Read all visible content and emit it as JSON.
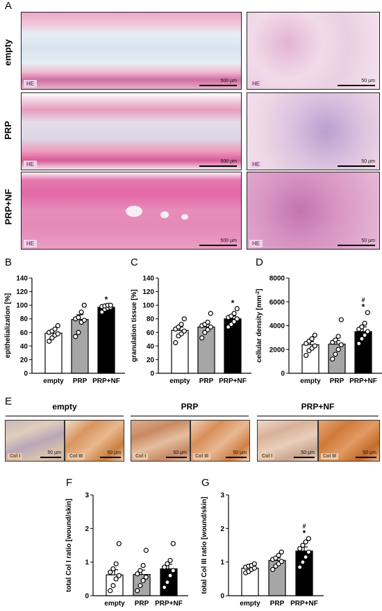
{
  "panel_letters": {
    "A": "A",
    "B": "B",
    "C": "C",
    "D": "D",
    "E": "E",
    "F": "F",
    "G": "G"
  },
  "panel_a": {
    "rows": [
      {
        "label": "empty",
        "stain": "HE",
        "scale_low": "500 µm",
        "scale_high": "50 µm"
      },
      {
        "label": "PRP",
        "stain": "HE",
        "scale_low": "500 µm",
        "scale_high": "50 µm"
      },
      {
        "label": "PRP+NF",
        "stain": "HE",
        "scale_low": "500 µm",
        "scale_high": "50 µm"
      }
    ]
  },
  "panel_e": {
    "groups": [
      {
        "label": "empty",
        "col1": "Col I",
        "col3": "Col III",
        "scale1": "50 µm",
        "scale3": "50 µm"
      },
      {
        "label": "PRP",
        "col1": "Col I",
        "col3": "Col III",
        "scale1": "50 µm",
        "scale3": "50 µm"
      },
      {
        "label": "PRP+NF",
        "col1": "Col I",
        "col3": "Col III",
        "scale1": "50 µm",
        "scale3": "50 µm"
      }
    ]
  },
  "colors": {
    "empty": "#ffffff",
    "PRP": "#a6a6a6",
    "PRP+NF": "#000000"
  },
  "chart_data": [
    {
      "id": "B",
      "type": "bar",
      "categories": [
        "empty",
        "PRP",
        "PRP+NF"
      ],
      "values": [
        59,
        79,
        97
      ],
      "errors": [
        5,
        7,
        2
      ],
      "points": [
        [
          47,
          52,
          56,
          58,
          60,
          62,
          65,
          70
        ],
        [
          54,
          60,
          75,
          78,
          80,
          82,
          90,
          100
        ],
        [
          90,
          94,
          96,
          97,
          98,
          99,
          100,
          100
        ]
      ],
      "sig": [
        "",
        "",
        "*"
      ],
      "ylabel": "epithelialization [%]",
      "ylim": [
        0,
        140
      ],
      "yticks": [
        0,
        20,
        40,
        60,
        80,
        100,
        120,
        140
      ]
    },
    {
      "id": "C",
      "type": "bar",
      "categories": [
        "empty",
        "PRP",
        "PRP+NF"
      ],
      "values": [
        63,
        68,
        80
      ],
      "errors": [
        5,
        4,
        4
      ],
      "points": [
        [
          45,
          55,
          58,
          62,
          65,
          68,
          72,
          80
        ],
        [
          52,
          60,
          64,
          68,
          70,
          72,
          75,
          88
        ],
        [
          68,
          72,
          76,
          80,
          82,
          84,
          88,
          95
        ]
      ],
      "sig": [
        "",
        "",
        "*"
      ],
      "ylabel": "granulation tissue [%]",
      "ylim": [
        0,
        140
      ],
      "yticks": [
        0,
        20,
        40,
        60,
        80,
        100,
        120,
        140
      ]
    },
    {
      "id": "D",
      "type": "bar",
      "categories": [
        "empty",
        "PRP",
        "PRP+NF"
      ],
      "values": [
        2400,
        2450,
        3500
      ],
      "errors": [
        250,
        300,
        400
      ],
      "points": [
        [
          1500,
          1900,
          2100,
          2300,
          2500,
          2700,
          2900,
          3200
        ],
        [
          1200,
          1600,
          2000,
          2400,
          2600,
          2800,
          3100,
          4500
        ],
        [
          2500,
          2900,
          3200,
          3500,
          3700,
          3900,
          4200,
          5100
        ]
      ],
      "sig": [
        "",
        "",
        "*"
      ],
      "sig2": [
        "",
        "",
        "#"
      ],
      "ylabel": "cellular density [mm",
      "ylabel_sup": "-2",
      "ylabel_end": "]",
      "ylim": [
        0,
        8000
      ],
      "yticks": [
        0,
        2000,
        4000,
        6000,
        8000
      ]
    },
    {
      "id": "F",
      "type": "bar",
      "categories": [
        "empty",
        "PRP",
        "PRP+NF"
      ],
      "values": [
        0.62,
        0.63,
        0.8
      ],
      "errors": [
        0.15,
        0.13,
        0.14
      ],
      "points": [
        [
          0.15,
          0.3,
          0.5,
          0.6,
          0.7,
          0.8,
          0.95,
          1.55
        ],
        [
          0.15,
          0.3,
          0.45,
          0.55,
          0.65,
          0.75,
          0.9,
          1.35
        ],
        [
          0.25,
          0.4,
          0.6,
          0.75,
          0.85,
          0.95,
          1.05,
          1.55
        ]
      ],
      "sig": [
        "",
        "",
        ""
      ],
      "ylabel": "total Col I ratio [wound/skin]",
      "ylim": [
        0,
        3
      ],
      "yticks": [
        0,
        1,
        2,
        3
      ]
    },
    {
      "id": "G",
      "type": "bar",
      "categories": [
        "empty",
        "PRP",
        "PRP+NF"
      ],
      "values": [
        0.82,
        1.05,
        1.33
      ],
      "errors": [
        0.05,
        0.07,
        0.12
      ],
      "points": [
        [
          0.68,
          0.72,
          0.78,
          0.82,
          0.85,
          0.88,
          0.9,
          0.95
        ],
        [
          0.78,
          0.88,
          0.95,
          1.02,
          1.08,
          1.12,
          1.2,
          1.3
        ],
        [
          0.85,
          1.0,
          1.15,
          1.3,
          1.4,
          1.5,
          1.6,
          1.7
        ]
      ],
      "sig": [
        "",
        "",
        "*"
      ],
      "sig2": [
        "",
        "",
        "#"
      ],
      "ylabel": "total Col III ratio [wound/skin]",
      "ylim": [
        0,
        3
      ],
      "yticks": [
        0,
        1,
        2,
        3
      ]
    }
  ]
}
